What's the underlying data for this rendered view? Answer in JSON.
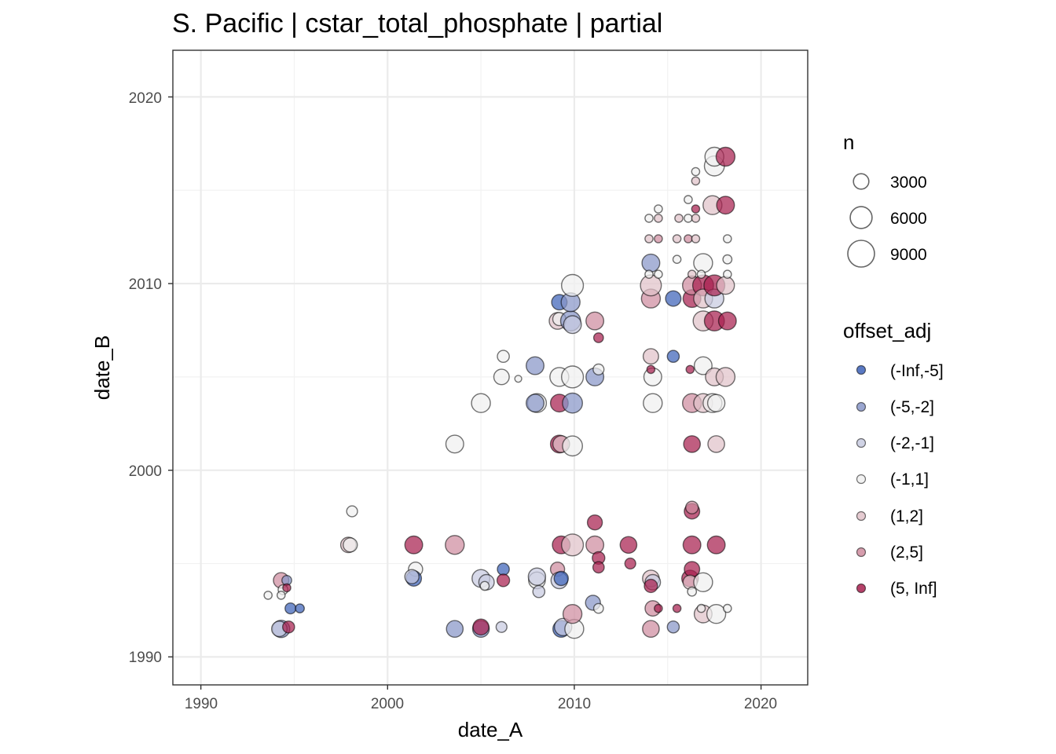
{
  "chart_data": {
    "type": "scatter",
    "title": "S. Pacific | cstar_total_phosphate | partial",
    "xlabel": "date_A",
    "ylabel": "date_B",
    "xlim": [
      1988.5,
      2022.5
    ],
    "ylim": [
      1988.5,
      2022.5
    ],
    "xticks": [
      "1990",
      "2000",
      "2010",
      "2020"
    ],
    "yticks": [
      "1990",
      "2000",
      "2010",
      "2020"
    ],
    "size_legend": {
      "title": "n",
      "breaks": [
        3000,
        6000,
        9000
      ],
      "labels": [
        "3000",
        "6000",
        "9000"
      ]
    },
    "color_legend": {
      "title": "offset_adj",
      "levels": [
        "(-Inf,-5]",
        "(-5,-2]",
        "(-2,-1]",
        "(-1,1]",
        "(1,2]",
        "(2,5]",
        "(5, Inf]"
      ],
      "colors": [
        "#3d62b8",
        "#8896c8",
        "#c8cbe0",
        "#f0f0f0",
        "#e0c2c9",
        "#cf8c9f",
        "#a8204f"
      ]
    },
    "points": [
      [
        1994.3,
        1991.5,
        1,
        3800
      ],
      [
        1994.2,
        1991.5,
        2,
        3000
      ],
      [
        1994.7,
        1991.6,
        6,
        1800
      ],
      [
        1994.3,
        1994.1,
        5,
        3000
      ],
      [
        1994.4,
        1993.6,
        3,
        1200
      ],
      [
        1994.6,
        1994.1,
        1,
        1200
      ],
      [
        1994.3,
        1993.3,
        3,
        800
      ],
      [
        1993.6,
        1993.3,
        3,
        800
      ],
      [
        1994.6,
        1993.7,
        6,
        800
      ],
      [
        1994.8,
        1992.6,
        0,
        1500
      ],
      [
        1995.3,
        1992.6,
        0,
        1000
      ],
      [
        1997.9,
        1996.0,
        4,
        3000
      ],
      [
        1998.0,
        1996.0,
        3,
        2500
      ],
      [
        1998.1,
        1997.8,
        3,
        1500
      ],
      [
        2001.4,
        1996.0,
        6,
        4000
      ],
      [
        2001.5,
        1994.7,
        3,
        2500
      ],
      [
        2001.4,
        1994.2,
        0,
        3000
      ],
      [
        2001.3,
        1994.3,
        2,
        2500
      ],
      [
        2003.6,
        1996.0,
        5,
        4500
      ],
      [
        2003.6,
        1991.5,
        1,
        3500
      ],
      [
        2003.6,
        2001.4,
        3,
        4000
      ],
      [
        2005.0,
        1994.2,
        2,
        4000
      ],
      [
        2005.3,
        1994.0,
        2,
        3000
      ],
      [
        2005.2,
        1993.8,
        3,
        1000
      ],
      [
        2005.0,
        1991.5,
        1,
        3500
      ],
      [
        2005.0,
        1991.6,
        6,
        3200
      ],
      [
        2006.2,
        1994.7,
        0,
        1800
      ],
      [
        2006.2,
        1994.1,
        6,
        2000
      ],
      [
        2006.1,
        1991.6,
        2,
        1500
      ],
      [
        2005.0,
        2003.6,
        3,
        4500
      ],
      [
        2006.1,
        2005.0,
        3,
        3000
      ],
      [
        2006.2,
        2006.1,
        3,
        1800
      ],
      [
        2007.0,
        2004.9,
        3,
        600
      ],
      [
        2007.9,
        2005.6,
        1,
        4000
      ],
      [
        2008.0,
        2003.6,
        3,
        4500
      ],
      [
        2007.9,
        2003.6,
        1,
        4000
      ],
      [
        2008.0,
        1994.1,
        3,
        3500
      ],
      [
        2008.0,
        1994.3,
        2,
        3800
      ],
      [
        2008.1,
        1993.5,
        2,
        1800
      ],
      [
        2009.1,
        1994.7,
        5,
        2500
      ],
      [
        2009.2,
        1994.1,
        2,
        3500
      ],
      [
        2009.3,
        1994.2,
        0,
        2500
      ],
      [
        2009.3,
        1996.0,
        6,
        4000
      ],
      [
        2009.2,
        2001.4,
        6,
        4000
      ],
      [
        2009.3,
        2001.4,
        4,
        3500
      ],
      [
        2009.2,
        2003.6,
        6,
        4000
      ],
      [
        2009.2,
        2005.0,
        3,
        4500
      ],
      [
        2009.1,
        2008.0,
        4,
        3500
      ],
      [
        2009.2,
        2008.1,
        3,
        2200
      ],
      [
        2009.2,
        2009.0,
        0,
        3000
      ],
      [
        2009.3,
        1991.5,
        0,
        3500
      ],
      [
        2009.4,
        1991.6,
        2,
        3800
      ],
      [
        2009.9,
        1996.0,
        4,
        6000
      ],
      [
        2010.0,
        1991.5,
        3,
        4500
      ],
      [
        2009.9,
        1992.3,
        5,
        4500
      ],
      [
        2009.9,
        2001.3,
        3,
        5000
      ],
      [
        2009.9,
        2003.6,
        1,
        5000
      ],
      [
        2009.9,
        2005.0,
        3,
        6000
      ],
      [
        2009.8,
        2008.0,
        1,
        5000
      ],
      [
        2009.9,
        2007.8,
        2,
        4000
      ],
      [
        2009.8,
        2009.0,
        1,
        4500
      ],
      [
        2009.9,
        2009.9,
        3,
        6000
      ],
      [
        2011.1,
        1997.2,
        6,
        2800
      ],
      [
        2011.1,
        1996.0,
        5,
        4000
      ],
      [
        2011.3,
        1995.3,
        6,
        2000
      ],
      [
        2011.3,
        1994.8,
        6,
        1600
      ],
      [
        2011.0,
        1992.9,
        1,
        2800
      ],
      [
        2011.3,
        1992.6,
        3,
        1200
      ],
      [
        2011.1,
        2005.0,
        1,
        4000
      ],
      [
        2011.3,
        2005.4,
        3,
        1500
      ],
      [
        2011.1,
        2008.0,
        5,
        4000
      ],
      [
        2011.3,
        2007.1,
        6,
        1200
      ],
      [
        2012.9,
        1996.0,
        6,
        3500
      ],
      [
        2013.0,
        1995.0,
        6,
        1500
      ],
      [
        2014.1,
        1994.2,
        4,
        3500
      ],
      [
        2014.2,
        1994.0,
        2,
        3000
      ],
      [
        2014.1,
        1993.8,
        6,
        2200
      ],
      [
        2014.2,
        1992.6,
        5,
        3000
      ],
      [
        2014.1,
        1991.5,
        5,
        3500
      ],
      [
        2014.5,
        1992.6,
        6,
        800
      ],
      [
        2014.2,
        2003.6,
        3,
        4500
      ],
      [
        2014.2,
        2005.0,
        3,
        4000
      ],
      [
        2014.1,
        2005.4,
        6,
        800
      ],
      [
        2014.1,
        2006.1,
        4,
        3000
      ],
      [
        2014.1,
        2009.2,
        5,
        4500
      ],
      [
        2014.1,
        2009.9,
        4,
        5500
      ],
      [
        2014.1,
        2011.1,
        1,
        4000
      ],
      [
        2014.0,
        2012.4,
        4,
        800
      ],
      [
        2014.0,
        2013.5,
        3,
        800
      ],
      [
        2014.5,
        2012.4,
        5,
        800
      ],
      [
        2014.5,
        2013.5,
        4,
        800
      ],
      [
        2014.5,
        2014.0,
        3,
        800
      ],
      [
        2014.0,
        2010.5,
        3,
        800
      ],
      [
        2014.5,
        2010.5,
        3,
        800
      ],
      [
        2015.3,
        2009.2,
        0,
        3000
      ],
      [
        2015.3,
        2006.1,
        0,
        1800
      ],
      [
        2015.3,
        1991.6,
        1,
        1800
      ],
      [
        2015.5,
        1992.6,
        6,
        800
      ],
      [
        2015.6,
        2013.5,
        4,
        800
      ],
      [
        2015.5,
        2012.4,
        4,
        800
      ],
      [
        2015.5,
        2011.3,
        3,
        800
      ],
      [
        2016.2,
        1994.2,
        6,
        3500
      ],
      [
        2016.3,
        1994.7,
        6,
        3000
      ],
      [
        2016.2,
        1994.0,
        4,
        2500
      ],
      [
        2016.3,
        1996.0,
        6,
        4000
      ],
      [
        2016.3,
        1997.8,
        6,
        3000
      ],
      [
        2016.3,
        1998.0,
        5,
        2000
      ],
      [
        2016.3,
        1993.5,
        3,
        1000
      ],
      [
        2016.3,
        2001.4,
        6,
        3500
      ],
      [
        2016.3,
        2003.6,
        5,
        4500
      ],
      [
        2016.2,
        2005.4,
        6,
        800
      ],
      [
        2016.3,
        2009.2,
        6,
        4000
      ],
      [
        2016.3,
        2009.9,
        5,
        4500
      ],
      [
        2016.3,
        2010.5,
        4,
        800
      ],
      [
        2016.1,
        2012.4,
        5,
        800
      ],
      [
        2016.1,
        2013.5,
        3,
        800
      ],
      [
        2016.1,
        2014.5,
        3,
        800
      ],
      [
        2016.5,
        2016.0,
        3,
        800
      ],
      [
        2016.5,
        2015.5,
        4,
        800
      ],
      [
        2016.5,
        2014.0,
        6,
        800
      ],
      [
        2016.5,
        2013.5,
        4,
        800
      ],
      [
        2016.5,
        2012.4,
        4,
        800
      ],
      [
        2016.9,
        1994.0,
        3,
        4500
      ],
      [
        2016.9,
        1992.3,
        4,
        4000
      ],
      [
        2016.8,
        1992.6,
        3,
        800
      ],
      [
        2016.9,
        2003.6,
        4,
        4500
      ],
      [
        2016.9,
        2005.6,
        3,
        4000
      ],
      [
        2016.9,
        2008.0,
        4,
        5000
      ],
      [
        2016.9,
        2009.9,
        6,
        5500
      ],
      [
        2016.9,
        2009.2,
        4,
        4500
      ],
      [
        2016.9,
        2011.1,
        3,
        4500
      ],
      [
        2016.8,
        2010.5,
        3,
        800
      ],
      [
        2017.4,
        2003.6,
        3,
        4500
      ],
      [
        2017.6,
        2003.6,
        3,
        3800
      ],
      [
        2017.6,
        2001.4,
        4,
        3500
      ],
      [
        2017.5,
        2009.2,
        2,
        4500
      ],
      [
        2017.5,
        2009.9,
        6,
        5500
      ],
      [
        2017.5,
        2008.0,
        6,
        5000
      ],
      [
        2017.5,
        2005.0,
        4,
        4000
      ],
      [
        2017.6,
        1996.0,
        6,
        4000
      ],
      [
        2017.6,
        1992.3,
        3,
        4500
      ],
      [
        2017.4,
        2014.2,
        4,
        4500
      ],
      [
        2017.5,
        2016.3,
        3,
        5000
      ],
      [
        2017.5,
        2016.8,
        3,
        4500
      ],
      [
        2018.1,
        2016.8,
        6,
        4500
      ],
      [
        2018.1,
        2014.2,
        6,
        4000
      ],
      [
        2018.1,
        2009.9,
        4,
        4000
      ],
      [
        2018.2,
        2008.0,
        6,
        4000
      ],
      [
        2018.1,
        2005.0,
        4,
        4500
      ],
      [
        2018.2,
        2012.4,
        3,
        800
      ],
      [
        2018.2,
        2011.3,
        3,
        1000
      ],
      [
        2018.2,
        2010.5,
        3,
        800
      ],
      [
        2018.2,
        1992.6,
        3,
        800
      ]
    ]
  }
}
